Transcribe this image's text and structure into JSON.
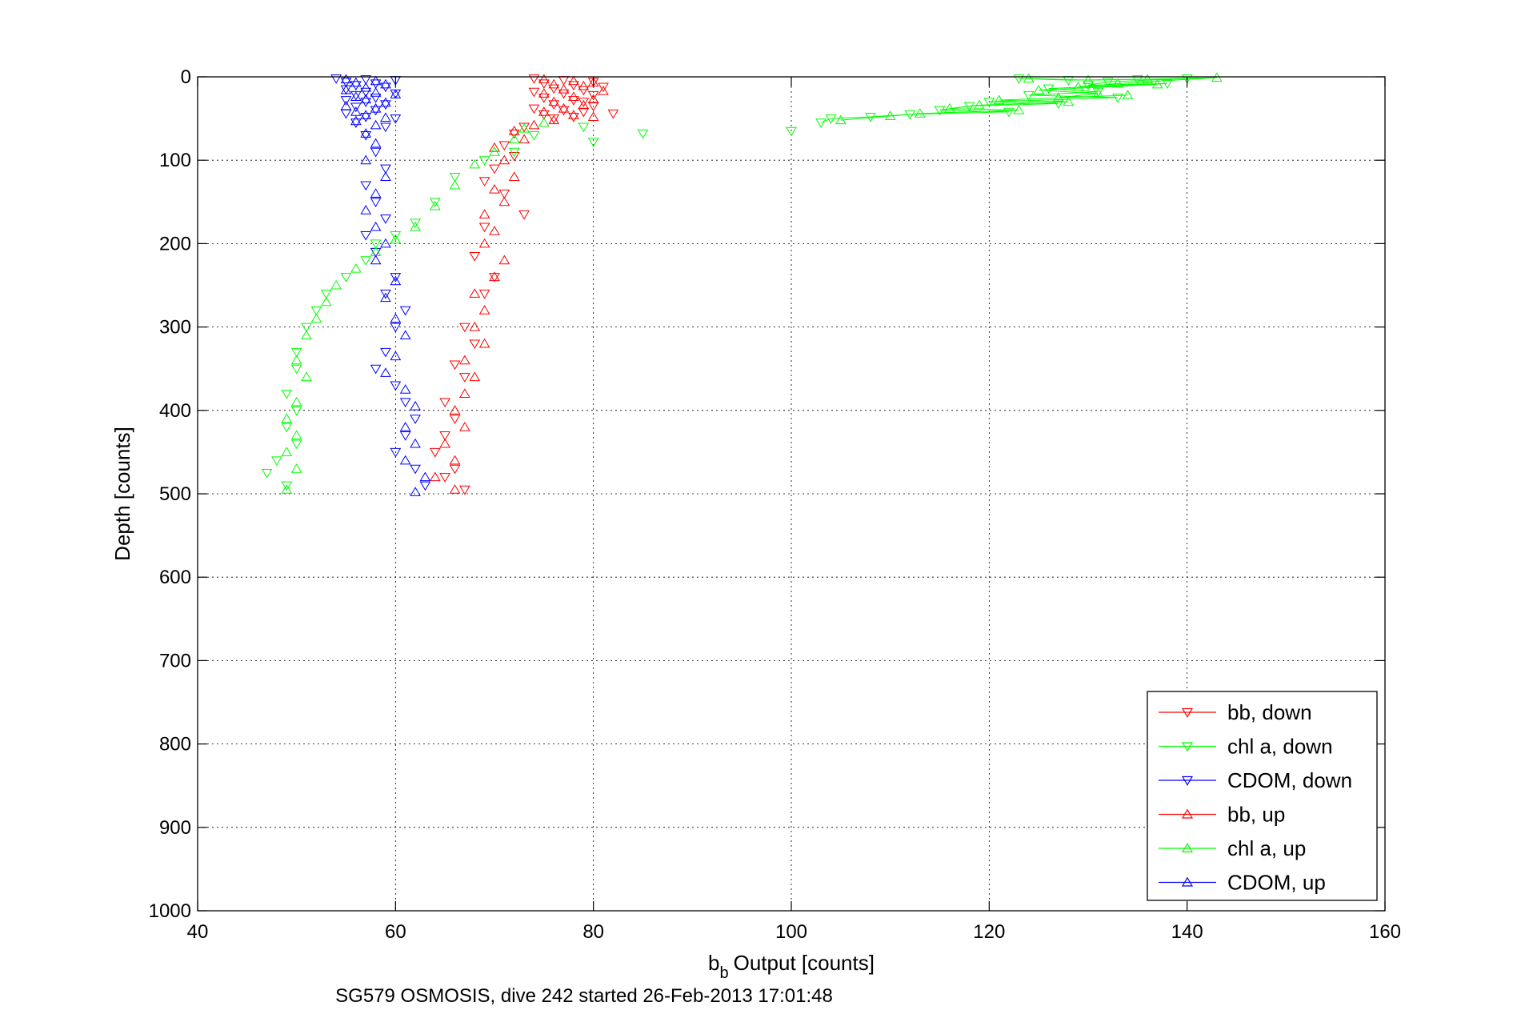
{
  "chart_data": {
    "type": "scatter",
    "xlabel": "Output [counts]",
    "xlabel_symbol": "b",
    "xlabel_subscript": "b",
    "ylabel": "Depth [counts]",
    "caption": "SG579 OSMOSIS, dive 242 started 26-Feb-2013 17:01:48",
    "xlim": [
      40,
      160
    ],
    "ylim": [
      0,
      1000
    ],
    "y_reversed": true,
    "grid": true,
    "legend_position": "bottom-right",
    "x_ticks": [
      "40",
      "60",
      "80",
      "100",
      "120",
      "140",
      "160"
    ],
    "y_ticks": [
      "0",
      "100",
      "200",
      "300",
      "400",
      "500",
      "600",
      "700",
      "800",
      "900",
      "1000"
    ],
    "series": [
      {
        "name": "bb, down",
        "color": "#ff0000",
        "marker": "triangle-down",
        "points": [
          [
            74,
            2
          ],
          [
            77,
            4
          ],
          [
            80,
            6
          ],
          [
            75,
            8
          ],
          [
            78,
            10
          ],
          [
            81,
            12
          ],
          [
            76,
            14
          ],
          [
            79,
            16
          ],
          [
            74,
            18
          ],
          [
            77,
            20
          ],
          [
            80,
            22
          ],
          [
            75,
            25
          ],
          [
            78,
            28
          ],
          [
            79,
            30
          ],
          [
            76,
            33
          ],
          [
            80,
            35
          ],
          [
            74,
            38
          ],
          [
            77,
            40
          ],
          [
            79,
            42
          ],
          [
            75,
            45
          ],
          [
            78,
            48
          ],
          [
            76,
            50
          ],
          [
            82,
            44
          ],
          [
            73,
            60
          ],
          [
            72,
            68
          ],
          [
            71,
            82
          ],
          [
            72,
            95
          ],
          [
            70,
            110
          ],
          [
            69,
            125
          ],
          [
            71,
            140
          ],
          [
            73,
            165
          ],
          [
            69,
            180
          ],
          [
            68,
            215
          ],
          [
            70,
            240
          ],
          [
            69,
            260
          ],
          [
            67,
            300
          ],
          [
            68,
            320
          ],
          [
            66,
            345
          ],
          [
            67,
            360
          ],
          [
            65,
            390
          ],
          [
            66,
            410
          ],
          [
            65,
            430
          ],
          [
            64,
            450
          ],
          [
            66,
            470
          ],
          [
            65,
            480
          ],
          [
            67,
            495
          ]
        ]
      },
      {
        "name": "chl a, down",
        "color": "#00ff00",
        "marker": "triangle-down",
        "points": [
          [
            123,
            2
          ],
          [
            128,
            4
          ],
          [
            135,
            3
          ],
          [
            140,
            2
          ],
          [
            132,
            6
          ],
          [
            130,
            10
          ],
          [
            138,
            8
          ],
          [
            126,
            14
          ],
          [
            131,
            18
          ],
          [
            124,
            22
          ],
          [
            133,
            25
          ],
          [
            120,
            30
          ],
          [
            127,
            32
          ],
          [
            118,
            35
          ],
          [
            115,
            40
          ],
          [
            122,
            42
          ],
          [
            112,
            45
          ],
          [
            108,
            48
          ],
          [
            104,
            50
          ],
          [
            103,
            55
          ],
          [
            100,
            65
          ],
          [
            85,
            68
          ],
          [
            80,
            78
          ],
          [
            79,
            60
          ],
          [
            74,
            70
          ],
          [
            72,
            90
          ],
          [
            69,
            100
          ],
          [
            66,
            120
          ],
          [
            64,
            150
          ],
          [
            62,
            175
          ],
          [
            60,
            190
          ],
          [
            58,
            200
          ],
          [
            57,
            220
          ],
          [
            55,
            240
          ],
          [
            53,
            260
          ],
          [
            52,
            280
          ],
          [
            51,
            300
          ],
          [
            50,
            330
          ],
          [
            50,
            350
          ],
          [
            49,
            380
          ],
          [
            50,
            400
          ],
          [
            49,
            420
          ],
          [
            50,
            440
          ],
          [
            48,
            460
          ],
          [
            47,
            475
          ],
          [
            49,
            490
          ]
        ]
      },
      {
        "name": "CDOM, down",
        "color": "#0000ff",
        "marker": "triangle-down",
        "points": [
          [
            54,
            2
          ],
          [
            57,
            3
          ],
          [
            60,
            4
          ],
          [
            55,
            6
          ],
          [
            58,
            8
          ],
          [
            56,
            10
          ],
          [
            59,
            12
          ],
          [
            55,
            15
          ],
          [
            57,
            18
          ],
          [
            60,
            20
          ],
          [
            56,
            22
          ],
          [
            58,
            25
          ],
          [
            55,
            28
          ],
          [
            57,
            30
          ],
          [
            59,
            33
          ],
          [
            56,
            36
          ],
          [
            58,
            40
          ],
          [
            55,
            44
          ],
          [
            57,
            48
          ],
          [
            60,
            50
          ],
          [
            56,
            55
          ],
          [
            59,
            60
          ],
          [
            57,
            70
          ],
          [
            58,
            90
          ],
          [
            59,
            110
          ],
          [
            57,
            130
          ],
          [
            58,
            150
          ],
          [
            59,
            170
          ],
          [
            57,
            190
          ],
          [
            58,
            210
          ],
          [
            60,
            240
          ],
          [
            59,
            260
          ],
          [
            61,
            280
          ],
          [
            60,
            300
          ],
          [
            59,
            330
          ],
          [
            58,
            350
          ],
          [
            60,
            370
          ],
          [
            61,
            390
          ],
          [
            62,
            410
          ],
          [
            61,
            430
          ],
          [
            60,
            450
          ],
          [
            62,
            470
          ],
          [
            63,
            490
          ]
        ]
      },
      {
        "name": "bb, up",
        "color": "#ff0000",
        "marker": "triangle-up",
        "points": [
          [
            75,
            3
          ],
          [
            78,
            5
          ],
          [
            80,
            7
          ],
          [
            76,
            9
          ],
          [
            79,
            11
          ],
          [
            77,
            15
          ],
          [
            81,
            17
          ],
          [
            75,
            20
          ],
          [
            78,
            24
          ],
          [
            80,
            27
          ],
          [
            76,
            30
          ],
          [
            79,
            34
          ],
          [
            77,
            38
          ],
          [
            75,
            42
          ],
          [
            78,
            46
          ],
          [
            80,
            48
          ],
          [
            76,
            52
          ],
          [
            74,
            58
          ],
          [
            72,
            65
          ],
          [
            73,
            75
          ],
          [
            70,
            85
          ],
          [
            71,
            100
          ],
          [
            72,
            120
          ],
          [
            70,
            135
          ],
          [
            71,
            150
          ],
          [
            69,
            165
          ],
          [
            70,
            185
          ],
          [
            69,
            200
          ],
          [
            71,
            220
          ],
          [
            70,
            240
          ],
          [
            68,
            260
          ],
          [
            69,
            280
          ],
          [
            68,
            300
          ],
          [
            69,
            320
          ],
          [
            67,
            340
          ],
          [
            68,
            360
          ],
          [
            67,
            380
          ],
          [
            66,
            400
          ],
          [
            67,
            420
          ],
          [
            65,
            440
          ],
          [
            66,
            460
          ],
          [
            64,
            480
          ],
          [
            66,
            495
          ]
        ]
      },
      {
        "name": "chl a, up",
        "color": "#00ff00",
        "marker": "triangle-up",
        "points": [
          [
            124,
            2
          ],
          [
            130,
            4
          ],
          [
            136,
            3
          ],
          [
            143,
            1
          ],
          [
            133,
            8
          ],
          [
            129,
            12
          ],
          [
            137,
            9
          ],
          [
            125,
            16
          ],
          [
            131,
            20
          ],
          [
            127,
            25
          ],
          [
            134,
            22
          ],
          [
            121,
            28
          ],
          [
            128,
            30
          ],
          [
            119,
            34
          ],
          [
            116,
            38
          ],
          [
            123,
            40
          ],
          [
            113,
            44
          ],
          [
            110,
            47
          ],
          [
            105,
            52
          ],
          [
            75,
            55
          ],
          [
            73,
            62
          ],
          [
            72,
            75
          ],
          [
            70,
            90
          ],
          [
            68,
            105
          ],
          [
            66,
            130
          ],
          [
            64,
            155
          ],
          [
            62,
            180
          ],
          [
            60,
            195
          ],
          [
            58,
            210
          ],
          [
            56,
            230
          ],
          [
            54,
            250
          ],
          [
            53,
            270
          ],
          [
            52,
            290
          ],
          [
            51,
            310
          ],
          [
            50,
            340
          ],
          [
            51,
            360
          ],
          [
            50,
            390
          ],
          [
            49,
            410
          ],
          [
            50,
            430
          ],
          [
            49,
            450
          ],
          [
            50,
            470
          ],
          [
            49,
            495
          ]
        ]
      },
      {
        "name": "CDOM, up",
        "color": "#0000ff",
        "marker": "triangle-up",
        "points": [
          [
            55,
            3
          ],
          [
            58,
            5
          ],
          [
            56,
            7
          ],
          [
            59,
            9
          ],
          [
            57,
            13
          ],
          [
            55,
            16
          ],
          [
            58,
            19
          ],
          [
            60,
            21
          ],
          [
            56,
            24
          ],
          [
            57,
            27
          ],
          [
            59,
            31
          ],
          [
            55,
            35
          ],
          [
            58,
            38
          ],
          [
            56,
            42
          ],
          [
            57,
            46
          ],
          [
            59,
            49
          ],
          [
            56,
            53
          ],
          [
            58,
            58
          ],
          [
            57,
            68
          ],
          [
            58,
            80
          ],
          [
            57,
            100
          ],
          [
            59,
            120
          ],
          [
            58,
            140
          ],
          [
            57,
            160
          ],
          [
            58,
            180
          ],
          [
            59,
            200
          ],
          [
            58,
            220
          ],
          [
            60,
            245
          ],
          [
            59,
            265
          ],
          [
            60,
            290
          ],
          [
            61,
            310
          ],
          [
            60,
            335
          ],
          [
            59,
            355
          ],
          [
            61,
            375
          ],
          [
            62,
            395
          ],
          [
            61,
            420
          ],
          [
            62,
            440
          ],
          [
            61,
            460
          ],
          [
            63,
            480
          ],
          [
            62,
            498
          ]
        ]
      }
    ]
  }
}
